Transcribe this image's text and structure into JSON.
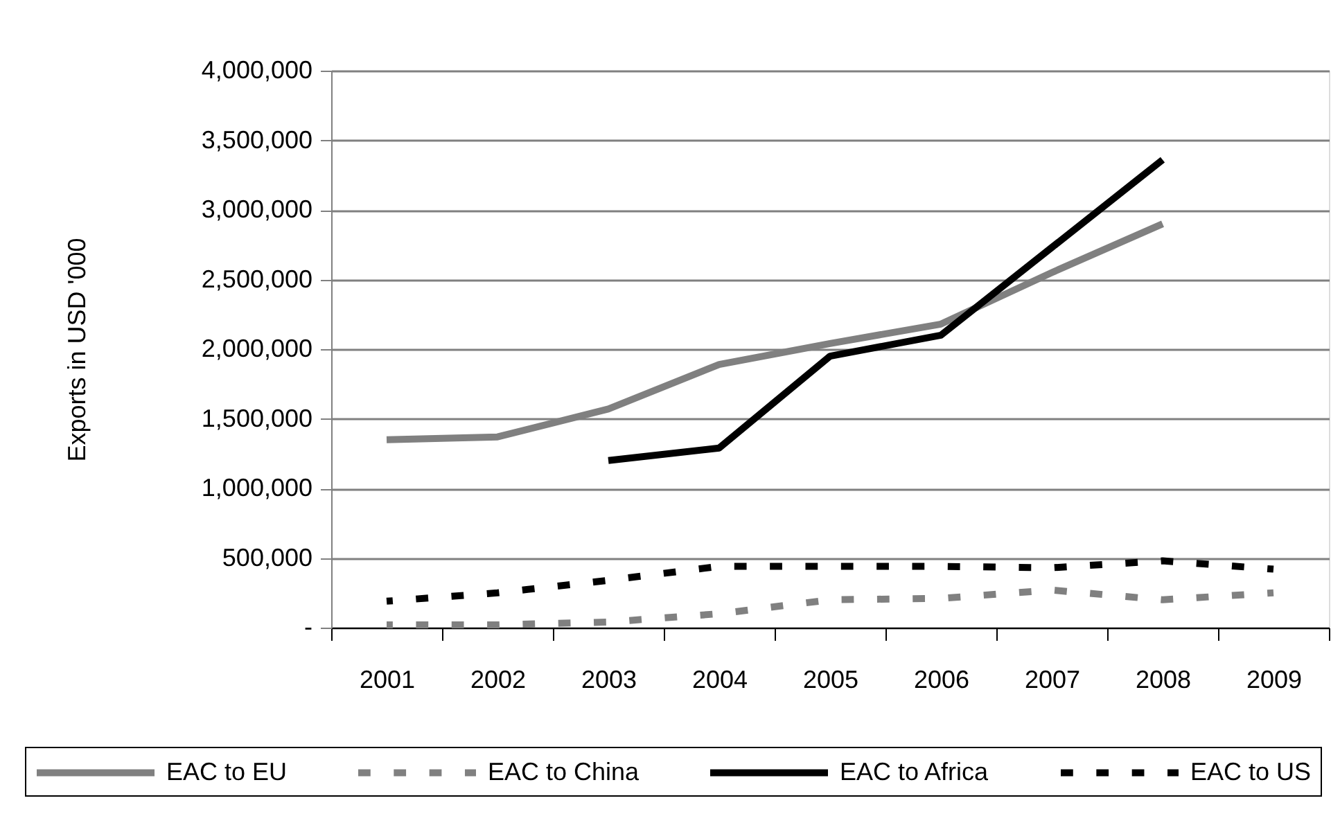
{
  "chart_data": {
    "type": "line",
    "ylabel": "Exports in USD '000",
    "categories": [
      "2001",
      "2002",
      "2003",
      "2004",
      "2005",
      "2006",
      "2007",
      "2008",
      "2009"
    ],
    "series": [
      {
        "name": "EAC to EU",
        "color": "#808080",
        "line_style": "solid",
        "values": [
          1350000,
          1370000,
          1570000,
          1890000,
          2040000,
          2180000,
          2550000,
          2900000,
          null
        ]
      },
      {
        "name": "EAC to China",
        "color": "#808080",
        "line_style": "dashed",
        "values": [
          20000,
          20000,
          40000,
          100000,
          200000,
          210000,
          270000,
          200000,
          250000
        ]
      },
      {
        "name": "EAC to Africa",
        "color": "#000000",
        "line_style": "solid",
        "values": [
          null,
          null,
          1200000,
          1290000,
          1950000,
          2100000,
          2730000,
          3360000,
          null
        ]
      },
      {
        "name": "EAC to US",
        "color": "#000000",
        "line_style": "dashed",
        "values": [
          190000,
          250000,
          340000,
          440000,
          440000,
          440000,
          430000,
          480000,
          420000
        ]
      }
    ],
    "ylim": [
      0,
      4000000
    ],
    "yticks": [
      {
        "value": 0,
        "label": "-"
      },
      {
        "value": 500000,
        "label": "500,000"
      },
      {
        "value": 1000000,
        "label": "1,000,000"
      },
      {
        "value": 1500000,
        "label": "1,500,000"
      },
      {
        "value": 2000000,
        "label": "2,000,000"
      },
      {
        "value": 2500000,
        "label": "2,500,000"
      },
      {
        "value": 3000000,
        "label": "3,000,000"
      },
      {
        "value": 3500000,
        "label": "3,500,000"
      },
      {
        "value": 4000000,
        "label": "4,000,000"
      }
    ],
    "grid": "y",
    "legend": "bottom"
  }
}
